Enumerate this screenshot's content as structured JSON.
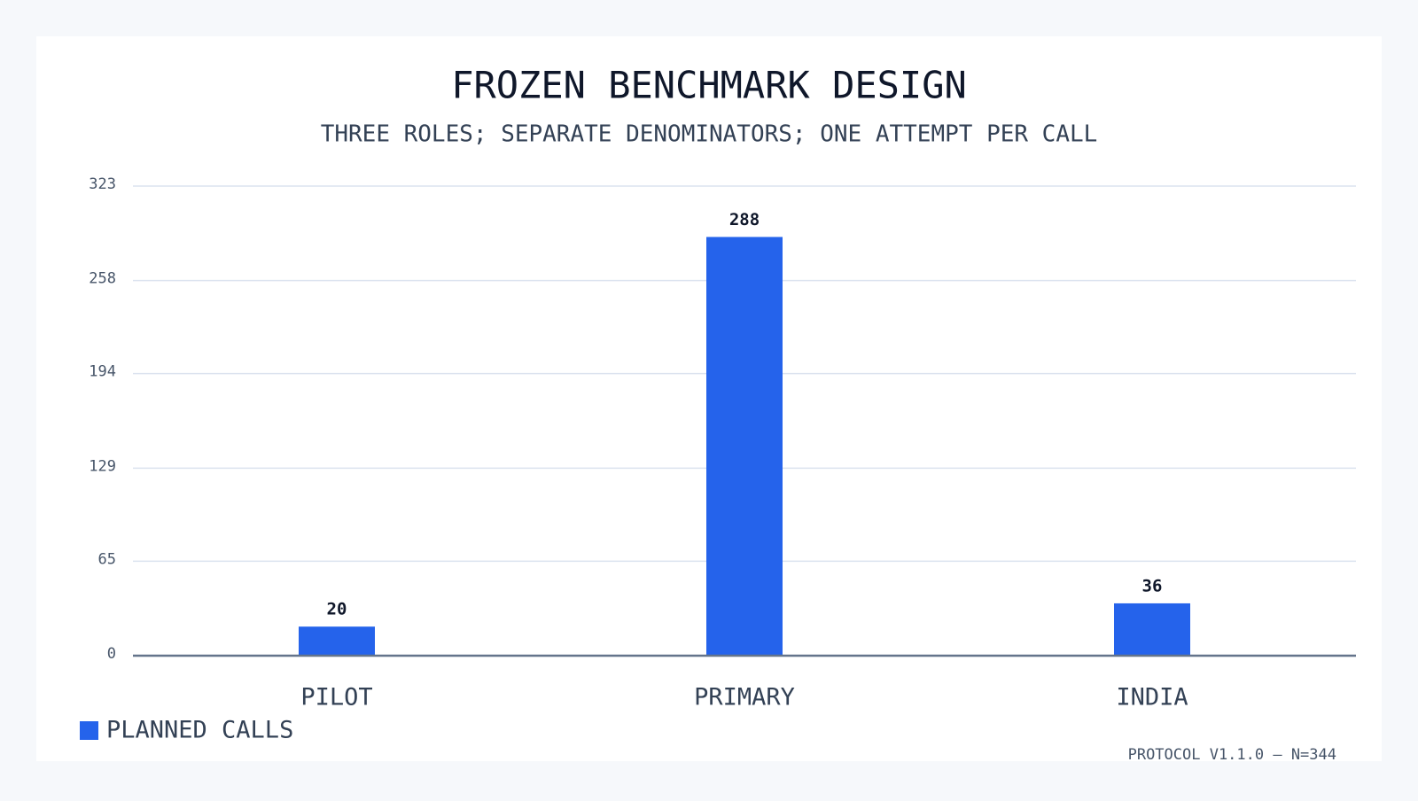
{
  "chart_data": {
    "type": "bar",
    "title": "FROZEN BENCHMARK DESIGN",
    "subtitle": "THREE ROLES; SEPARATE DENOMINATORS; ONE ATTEMPT PER CALL",
    "categories": [
      "PILOT",
      "PRIMARY",
      "INDIA"
    ],
    "series": [
      {
        "name": "PLANNED CALLS",
        "color": "#2563eb",
        "values": [
          20,
          288,
          36
        ]
      }
    ],
    "ylim": [
      0,
      323
    ],
    "yticks": [
      0,
      65,
      129,
      194,
      258,
      323
    ],
    "grid": true,
    "legend": "bottom-left",
    "annotation": "PROTOCOL V1.1.0 — N=344"
  }
}
